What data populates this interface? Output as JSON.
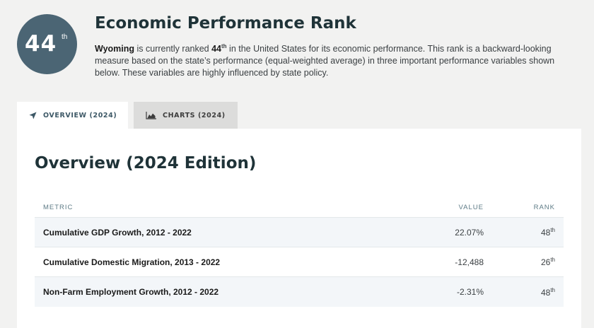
{
  "header": {
    "rank_number": "44",
    "rank_suffix": "th",
    "title": "Economic Performance Rank",
    "state": "Wyoming",
    "desc_part1": " is currently ranked ",
    "desc_rank_number": "44",
    "desc_rank_suffix": "th",
    "desc_part2": " in the United States for its economic performance. This rank is a backward-looking measure based on the state’s performance (equal-weighted average) in three important performance variables shown below. These variables are highly influenced by state policy."
  },
  "tabs": [
    {
      "label": "Overview (2024)",
      "icon": "navigation-arrow-icon",
      "active": true
    },
    {
      "label": "Charts (2024)",
      "icon": "area-chart-icon",
      "active": false
    }
  ],
  "overview": {
    "title": "Overview (2024 Edition)",
    "columns": {
      "metric": "Metric",
      "value": "Value",
      "rank": "Rank"
    },
    "rows": [
      {
        "metric": "Cumulative GDP Growth, 2012 - 2022",
        "value": "22.07%",
        "rank": "48",
        "rank_suffix": "th"
      },
      {
        "metric": "Cumulative Domestic Migration, 2013 - 2022",
        "value": "-12,488",
        "rank": "26",
        "rank_suffix": "th"
      },
      {
        "metric": "Non-Farm Employment Growth, 2012 - 2022",
        "value": "-2.31%",
        "rank": "48",
        "rank_suffix": "th"
      }
    ]
  },
  "colors": {
    "badge": "#4b6574",
    "heading": "#1f3338",
    "tab_active_text": "#3d5866",
    "row_shade": "#f3f6f9"
  }
}
